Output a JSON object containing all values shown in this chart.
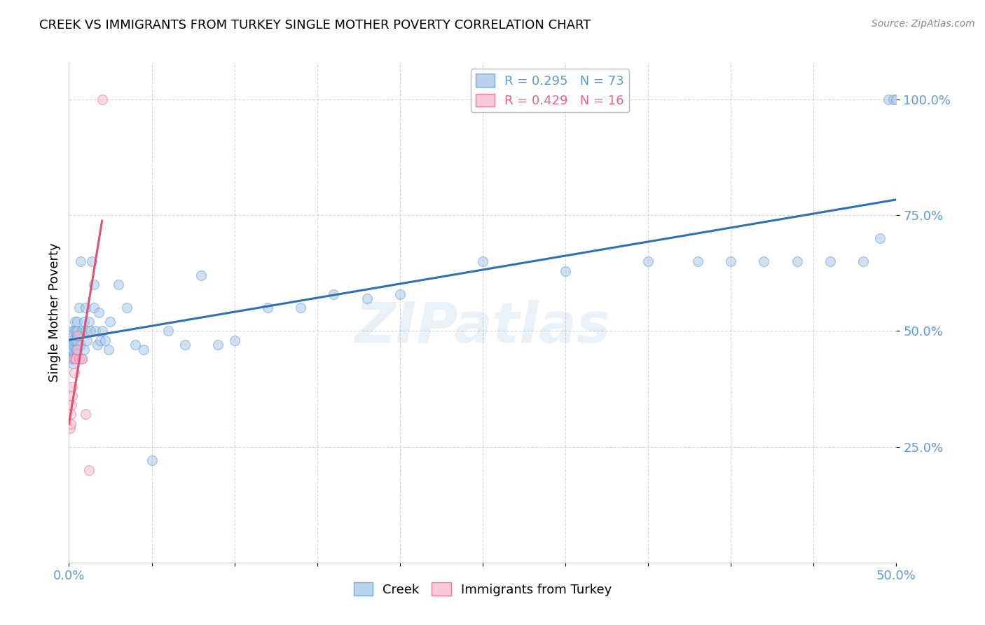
{
  "title": "CREEK VS IMMIGRANTS FROM TURKEY SINGLE MOTHER POVERTY CORRELATION CHART",
  "source": "Source: ZipAtlas.com",
  "ylabel": "Single Mother Poverty",
  "xlim": [
    0.0,
    0.5
  ],
  "ylim": [
    0.0,
    1.08
  ],
  "creek_color": "#a8c8e8",
  "creek_edge_color": "#5b9bd5",
  "turkey_color": "#f8bbd0",
  "turkey_edge_color": "#f06090",
  "trend_blue": "#3070b0",
  "trend_pink": "#e05070",
  "legend_R_blue": "R = 0.295",
  "legend_N_blue": "N = 73",
  "legend_R_pink": "R = 0.429",
  "legend_N_pink": "N = 16",
  "watermark": "ZIPatlas",
  "marker_size": 100,
  "marker_alpha": 0.55,
  "creek_x": [
    0.0005,
    0.001,
    0.001,
    0.0015,
    0.0015,
    0.002,
    0.002,
    0.002,
    0.0025,
    0.0025,
    0.003,
    0.003,
    0.003,
    0.0035,
    0.004,
    0.004,
    0.004,
    0.0045,
    0.005,
    0.005,
    0.005,
    0.006,
    0.006,
    0.007,
    0.007,
    0.008,
    0.008,
    0.009,
    0.009,
    0.01,
    0.01,
    0.011,
    0.012,
    0.013,
    0.014,
    0.015,
    0.015,
    0.016,
    0.017,
    0.018,
    0.019,
    0.02,
    0.022,
    0.024,
    0.025,
    0.03,
    0.035,
    0.04,
    0.045,
    0.05,
    0.06,
    0.07,
    0.08,
    0.09,
    0.1,
    0.12,
    0.14,
    0.16,
    0.18,
    0.2,
    0.25,
    0.3,
    0.35,
    0.38,
    0.4,
    0.42,
    0.44,
    0.46,
    0.48,
    0.49,
    0.495,
    0.498,
    0.5
  ],
  "creek_y": [
    0.455,
    0.44,
    0.47,
    0.46,
    0.48,
    0.44,
    0.46,
    0.5,
    0.43,
    0.47,
    0.45,
    0.5,
    0.48,
    0.52,
    0.46,
    0.5,
    0.44,
    0.48,
    0.45,
    0.5,
    0.52,
    0.49,
    0.55,
    0.47,
    0.65,
    0.5,
    0.44,
    0.52,
    0.46,
    0.5,
    0.55,
    0.48,
    0.52,
    0.5,
    0.65,
    0.55,
    0.6,
    0.5,
    0.47,
    0.54,
    0.48,
    0.5,
    0.48,
    0.46,
    0.52,
    0.6,
    0.55,
    0.47,
    0.46,
    0.22,
    0.5,
    0.47,
    0.62,
    0.47,
    0.48,
    0.55,
    0.55,
    0.58,
    0.57,
    0.58,
    0.65,
    0.63,
    0.65,
    0.65,
    0.65,
    0.65,
    0.65,
    0.65,
    0.65,
    0.7,
    1.0,
    1.0,
    1.0
  ],
  "turkey_x": [
    0.0005,
    0.001,
    0.001,
    0.0015,
    0.002,
    0.002,
    0.003,
    0.003,
    0.004,
    0.005,
    0.005,
    0.006,
    0.008,
    0.01,
    0.012,
    0.02
  ],
  "turkey_y": [
    0.29,
    0.3,
    0.32,
    0.34,
    0.36,
    0.38,
    0.41,
    0.44,
    0.44,
    0.46,
    0.49,
    0.44,
    0.44,
    0.32,
    0.2,
    1.0
  ],
  "ytick_vals": [
    0.25,
    0.5,
    0.75,
    1.0
  ],
  "ytick_labels": [
    "25.0%",
    "50.0%",
    "75.0%",
    "100.0%"
  ],
  "xtick_vals": [
    0.0,
    0.05,
    0.1,
    0.15,
    0.2,
    0.25,
    0.3,
    0.35,
    0.4,
    0.45,
    0.5
  ],
  "label_color": "#5b9bd5",
  "grid_color": "#cccccc"
}
